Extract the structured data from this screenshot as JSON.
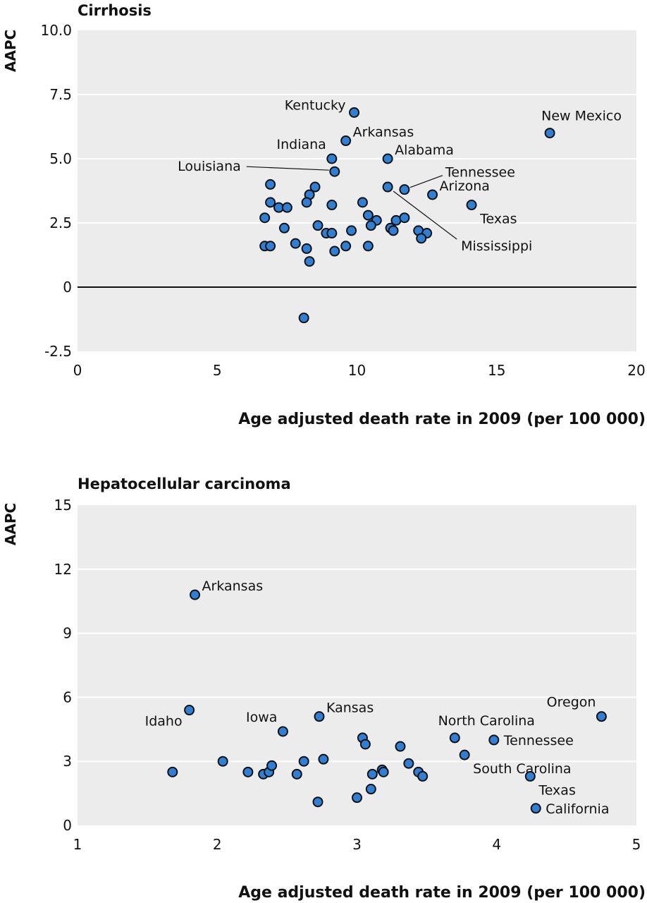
{
  "chart_data": [
    {
      "type": "scatter",
      "title": "Cirrhosis",
      "xlabel": "Age adjusted death rate in 2009 (per 100 000)",
      "ylabel": "AAPC",
      "xlim": [
        0,
        20
      ],
      "ylim": [
        -2.5,
        10
      ],
      "xticks": [
        "0",
        "5",
        "10",
        "15",
        "20"
      ],
      "xtick_values": [
        0,
        5,
        10,
        15,
        20
      ],
      "yticks": [
        "-2.5",
        "0",
        "2.5",
        "5.0",
        "7.5",
        "10.0"
      ],
      "ytick_values": [
        -2.5,
        0,
        2.5,
        5,
        7.5,
        10
      ],
      "grid": true,
      "zero_line": true,
      "points": [
        {
          "x": 9.9,
          "y": 6.8,
          "label": "Kentucky",
          "label_pos": "left"
        },
        {
          "x": 16.9,
          "y": 6.0,
          "label": "New Mexico",
          "label_pos": "above"
        },
        {
          "x": 9.6,
          "y": 5.7,
          "label": "Arkansas",
          "label_pos": "above-right"
        },
        {
          "x": 9.1,
          "y": 5.0,
          "label": "Indiana",
          "label_pos": "above-left"
        },
        {
          "x": 11.1,
          "y": 5.0,
          "label": "Alabama",
          "label_pos": "above-right"
        },
        {
          "x": 9.2,
          "y": 4.5,
          "label": "Louisiana",
          "label_pos": "leader-left"
        },
        {
          "x": 11.7,
          "y": 3.8,
          "label": "Tennessee",
          "label_pos": "leader-right"
        },
        {
          "x": 12.7,
          "y": 3.6,
          "label": "Arizona",
          "label_pos": "above-right"
        },
        {
          "x": 14.1,
          "y": 3.2,
          "label": "Texas",
          "label_pos": "below-right"
        },
        {
          "x": 11.1,
          "y": 3.9,
          "label": "Mississippi",
          "label_pos": "leader-below"
        },
        {
          "x": 8.1,
          "y": -1.2
        },
        {
          "x": 6.9,
          "y": 4.0
        },
        {
          "x": 8.5,
          "y": 3.9
        },
        {
          "x": 8.3,
          "y": 3.6
        },
        {
          "x": 6.9,
          "y": 3.3
        },
        {
          "x": 8.2,
          "y": 3.3
        },
        {
          "x": 10.2,
          "y": 3.3
        },
        {
          "x": 7.2,
          "y": 3.1
        },
        {
          "x": 7.5,
          "y": 3.1
        },
        {
          "x": 9.1,
          "y": 3.2
        },
        {
          "x": 10.4,
          "y": 2.8
        },
        {
          "x": 6.7,
          "y": 2.7
        },
        {
          "x": 10.7,
          "y": 2.6
        },
        {
          "x": 11.4,
          "y": 2.6
        },
        {
          "x": 11.7,
          "y": 2.7
        },
        {
          "x": 7.4,
          "y": 2.3
        },
        {
          "x": 8.6,
          "y": 2.4
        },
        {
          "x": 10.5,
          "y": 2.4
        },
        {
          "x": 11.2,
          "y": 2.3
        },
        {
          "x": 8.9,
          "y": 2.1
        },
        {
          "x": 9.1,
          "y": 2.1
        },
        {
          "x": 9.8,
          "y": 2.2
        },
        {
          "x": 11.3,
          "y": 2.2
        },
        {
          "x": 12.2,
          "y": 2.2
        },
        {
          "x": 12.5,
          "y": 2.1
        },
        {
          "x": 12.3,
          "y": 1.9
        },
        {
          "x": 7.8,
          "y": 1.7
        },
        {
          "x": 6.7,
          "y": 1.6
        },
        {
          "x": 6.9,
          "y": 1.6
        },
        {
          "x": 8.2,
          "y": 1.5
        },
        {
          "x": 9.2,
          "y": 1.4
        },
        {
          "x": 9.6,
          "y": 1.6
        },
        {
          "x": 10.4,
          "y": 1.6
        },
        {
          "x": 8.3,
          "y": 1.0
        }
      ]
    },
    {
      "type": "scatter",
      "title": "Hepatocellular carcinoma",
      "xlabel": "Age adjusted death rate in 2009 (per 100 000)",
      "ylabel": "AAPC",
      "xlim": [
        1,
        5
      ],
      "ylim": [
        0,
        15
      ],
      "xticks": [
        "1",
        "2",
        "3",
        "4",
        "5"
      ],
      "xtick_values": [
        1,
        2,
        3,
        4,
        5
      ],
      "yticks": [
        "0",
        "3",
        "6",
        "9",
        "12",
        "15"
      ],
      "ytick_values": [
        0,
        3,
        6,
        9,
        12,
        15
      ],
      "grid": true,
      "zero_line": false,
      "points": [
        {
          "x": 1.84,
          "y": 10.8,
          "label": "Arkansas",
          "label_pos": "above-right"
        },
        {
          "x": 1.8,
          "y": 5.4,
          "label": "Idaho",
          "label_pos": "below-left"
        },
        {
          "x": 2.47,
          "y": 4.4,
          "label": "Iowa",
          "label_pos": "above-left"
        },
        {
          "x": 2.73,
          "y": 5.1,
          "label": "Kansas",
          "label_pos": "above-right"
        },
        {
          "x": 3.7,
          "y": 4.1,
          "label": "North Carolina",
          "label_pos": "above"
        },
        {
          "x": 4.75,
          "y": 5.1,
          "label": "Oregon",
          "label_pos": "above-left"
        },
        {
          "x": 3.98,
          "y": 4.0,
          "label": "Tennessee",
          "label_pos": "right"
        },
        {
          "x": 3.77,
          "y": 3.3,
          "label": "South Carolina",
          "label_pos": "below-right"
        },
        {
          "x": 4.24,
          "y": 2.3,
          "label": "Texas",
          "label_pos": "below-right"
        },
        {
          "x": 4.28,
          "y": 0.8,
          "label": "California",
          "label_pos": "right"
        },
        {
          "x": 1.68,
          "y": 2.5
        },
        {
          "x": 2.04,
          "y": 3.0
        },
        {
          "x": 2.22,
          "y": 2.5
        },
        {
          "x": 2.33,
          "y": 2.4
        },
        {
          "x": 2.37,
          "y": 2.5
        },
        {
          "x": 2.39,
          "y": 2.8
        },
        {
          "x": 2.57,
          "y": 2.4
        },
        {
          "x": 2.62,
          "y": 3.0
        },
        {
          "x": 2.72,
          "y": 1.1
        },
        {
          "x": 2.76,
          "y": 3.1
        },
        {
          "x": 3.0,
          "y": 1.3
        },
        {
          "x": 3.04,
          "y": 4.1
        },
        {
          "x": 3.06,
          "y": 3.8
        },
        {
          "x": 3.1,
          "y": 1.7
        },
        {
          "x": 3.11,
          "y": 2.4
        },
        {
          "x": 3.18,
          "y": 2.6
        },
        {
          "x": 3.19,
          "y": 2.5
        },
        {
          "x": 3.31,
          "y": 3.7
        },
        {
          "x": 3.37,
          "y": 2.9
        },
        {
          "x": 3.44,
          "y": 2.5
        },
        {
          "x": 3.47,
          "y": 2.3
        }
      ]
    }
  ]
}
